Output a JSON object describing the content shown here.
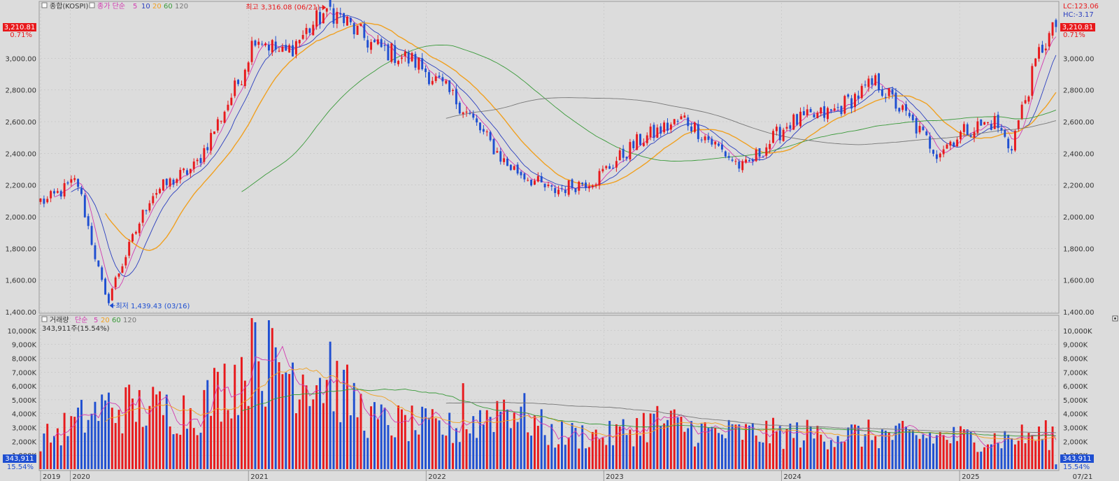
{
  "price_panel": {
    "label_prefix": "종합(KOSPI)",
    "ma_label": "종가 단순",
    "ma_periods": [
      "5",
      "10",
      "20",
      "60",
      "120"
    ],
    "ma_colors": [
      "#d23ab0",
      "#2b3fbf",
      "#f0a020",
      "#3a9a3a",
      "#777777"
    ],
    "current_value": "3,210.81",
    "current_change": "0.71%",
    "lc_label": "LC:123.06",
    "hc_label": "HC:-3.17",
    "high_annotation": "최고 3,316.08 (06/21)",
    "low_annotation": "최저 1,439.43 (03/16)",
    "y_ticks": [
      "3,000.00",
      "2,800.00",
      "2,600.00",
      "2,400.00",
      "2,200.00",
      "2,000.00",
      "1,800.00",
      "1,600.00",
      "1,400.00"
    ]
  },
  "volume_panel": {
    "label": "거래량",
    "ma_label": "단순",
    "ma_periods": [
      "5",
      "20",
      "60",
      "120"
    ],
    "current_volume": "343,911주(15.54%)",
    "current_tag": "343,911",
    "current_pct": "15.54%",
    "y_ticks": [
      "10,000K",
      "9,000K",
      "8,000K",
      "7,000K",
      "6,000K",
      "5,000K",
      "4,000K",
      "3,000K",
      "2,000K",
      "1,000K"
    ]
  },
  "x_axis": {
    "labels": [
      "2019",
      "2020",
      "2021",
      "2022",
      "2023",
      "2024",
      "2025"
    ],
    "end_label": "07/21"
  },
  "colors": {
    "up": "#e8191c",
    "down": "#1f4fd1",
    "background": "#dcdcdc",
    "grid": "#bdbdbd"
  },
  "chart_data": {
    "type": "candlestick",
    "interval": "weekly",
    "title": "종합(KOSPI)",
    "anchors": [
      {
        "date": "2019-11",
        "close": 2100
      },
      {
        "date": "2020-01",
        "close": 2230
      },
      {
        "date": "2020-03",
        "close": 1460
      },
      {
        "date": "2020-06",
        "close": 2140
      },
      {
        "date": "2020-09",
        "close": 2320
      },
      {
        "date": "2020-12",
        "close": 2870
      },
      {
        "date": "2021-01",
        "close": 3150
      },
      {
        "date": "2021-03",
        "close": 3020
      },
      {
        "date": "2021-06",
        "close": 3316
      },
      {
        "date": "2021-09",
        "close": 3080
      },
      {
        "date": "2021-12",
        "close": 2970
      },
      {
        "date": "2022-03",
        "close": 2700
      },
      {
        "date": "2022-06",
        "close": 2330
      },
      {
        "date": "2022-09",
        "close": 2160
      },
      {
        "date": "2022-12",
        "close": 2240
      },
      {
        "date": "2023-03",
        "close": 2480
      },
      {
        "date": "2023-06",
        "close": 2620
      },
      {
        "date": "2023-10",
        "close": 2300
      },
      {
        "date": "2024-01",
        "close": 2590
      },
      {
        "date": "2024-04",
        "close": 2660
      },
      {
        "date": "2024-07",
        "close": 2850
      },
      {
        "date": "2024-11",
        "close": 2410
      },
      {
        "date": "2025-01",
        "close": 2550
      },
      {
        "date": "2025-03",
        "close": 2600
      },
      {
        "date": "2025-04",
        "close": 2430
      },
      {
        "date": "2025-06",
        "close": 3050
      },
      {
        "date": "2025-07",
        "close": 3210.81
      }
    ],
    "high": {
      "value": 3316.08,
      "date": "06/21"
    },
    "low": {
      "value": 1439.43,
      "date": "03/16"
    },
    "ylim": [
      1400,
      3350
    ],
    "moving_averages": [
      5,
      10,
      20,
      60,
      120
    ],
    "volume": {
      "unit": "K",
      "ylim": [
        0,
        11000
      ],
      "anchors": [
        {
          "date": "2019-11",
          "value": 2300
        },
        {
          "date": "2020-03",
          "value": 4500
        },
        {
          "date": "2020-09",
          "value": 4200
        },
        {
          "date": "2021-01",
          "value": 8000
        },
        {
          "date": "2021-06",
          "value": 6500
        },
        {
          "date": "2021-09",
          "value": 3500
        },
        {
          "date": "2022-03",
          "value": 2800
        },
        {
          "date": "2022-06",
          "value": 4800
        },
        {
          "date": "2022-09",
          "value": 2500
        },
        {
          "date": "2023-01",
          "value": 2400
        },
        {
          "date": "2023-04",
          "value": 3500
        },
        {
          "date": "2023-08",
          "value": 2600
        },
        {
          "date": "2024-06",
          "value": 2500
        },
        {
          "date": "2025-03",
          "value": 2200
        },
        {
          "date": "2025-07",
          "value": 2500
        }
      ],
      "peaks": [
        {
          "date": "2021-01",
          "value": 10600
        },
        {
          "date": "2021-06",
          "value": 9200
        },
        {
          "date": "2022-03",
          "value": 6200
        }
      ],
      "last": 343.911,
      "last_pct": "15.54%"
    }
  }
}
